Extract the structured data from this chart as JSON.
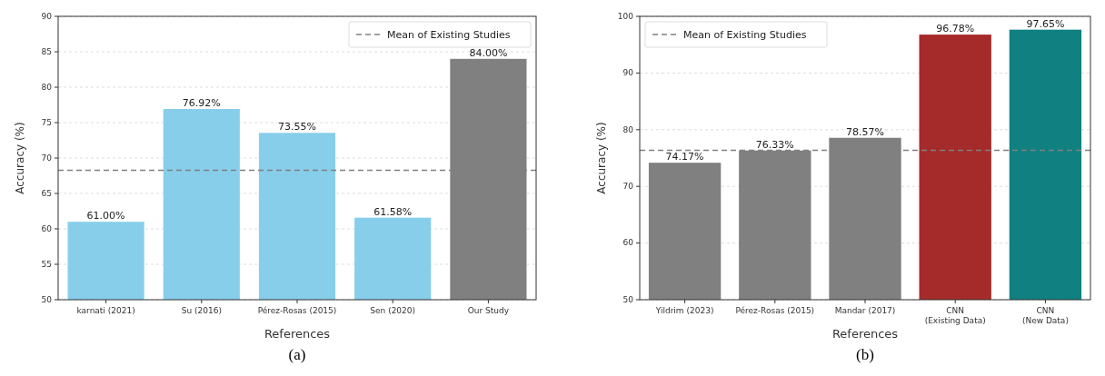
{
  "chart_data": [
    {
      "type": "bar",
      "xlabel": "References",
      "ylabel": "Accuracy (%)",
      "categories": [
        "karnati (2021)",
        "Su (2016)",
        "Pérez-Rosas (2015)",
        "Sen (2020)",
        "Our Study"
      ],
      "values": [
        61.0,
        76.92,
        73.55,
        61.58,
        84.0
      ],
      "colors": [
        "#87ceeb",
        "#87ceeb",
        "#87ceeb",
        "#87ceeb",
        "#808080"
      ],
      "value_labels": [
        "61.00%",
        "76.92%",
        "73.55%",
        "61.58%",
        "84.00%"
      ],
      "ylim": [
        50,
        90
      ],
      "yticks": [
        50,
        55,
        60,
        65,
        70,
        75,
        80,
        85,
        90
      ],
      "grid": "y",
      "legend": "top right",
      "ref_lines": [
        {
          "axis": "y",
          "value": 68.26,
          "label": "Mean of Existing Studies",
          "color": "#808080",
          "line_style": "dashed"
        }
      ],
      "annotations": [
        "(a)"
      ]
    },
    {
      "type": "bar",
      "xlabel": "References",
      "ylabel": "Accuracy (%)",
      "categories": [
        "Yildrim (2023)",
        "Pérez-Rosas (2015)",
        "Mandar (2017)",
        "CNN\n(Existing Data)",
        "CNN\n(New Data)"
      ],
      "values": [
        74.17,
        76.33,
        78.57,
        96.78,
        97.65
      ],
      "colors": [
        "#808080",
        "#808080",
        "#808080",
        "#a52a2a",
        "#108080"
      ],
      "value_labels": [
        "74.17%",
        "76.33%",
        "78.57%",
        "96.78%",
        "97.65%"
      ],
      "ylim": [
        50,
        100
      ],
      "yticks": [
        50,
        60,
        70,
        80,
        90,
        100
      ],
      "grid": "y",
      "legend": "top left",
      "ref_lines": [
        {
          "axis": "y",
          "value": 76.36,
          "label": "Mean of Existing Studies",
          "color": "#808080",
          "line_style": "dashed"
        }
      ],
      "annotations": [
        "(b)"
      ]
    }
  ]
}
